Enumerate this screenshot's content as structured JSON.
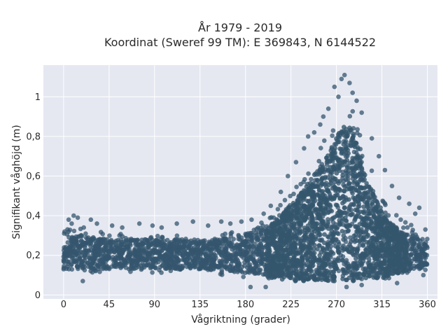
{
  "chart_data": {
    "type": "scatter",
    "title_lines": [
      "År 1979 - 2019",
      "Koordinat (Sweref 99 TM): E 369843, N 6144522"
    ],
    "xlabel": "Vågriktning (grader)",
    "ylabel": "Signifikant våghöjd (m)",
    "xlim": [
      -20,
      370
    ],
    "ylim": [
      -0.02,
      1.16
    ],
    "xticks": [
      0,
      45,
      90,
      135,
      180,
      225,
      270,
      315,
      360
    ],
    "xtick_labels": [
      "0",
      "45",
      "90",
      "135",
      "180",
      "225",
      "270",
      "315",
      "360"
    ],
    "yticks": [
      0,
      0.2,
      0.4,
      0.6,
      0.8,
      1
    ],
    "ytick_labels": [
      "0",
      "0,2",
      "0,4",
      "0,6",
      "0,8",
      "1"
    ],
    "grid": true,
    "marker_color": "#34566d",
    "background_color": "#e5e8f1",
    "envelope_x": [
      0,
      20,
      45,
      90,
      135,
      160,
      180,
      200,
      215,
      225,
      240,
      255,
      265,
      272,
      278,
      285,
      292,
      300,
      310,
      320,
      335,
      345,
      360
    ],
    "envelope_upper": [
      0.34,
      0.35,
      0.31,
      0.3,
      0.3,
      0.31,
      0.34,
      0.38,
      0.46,
      0.53,
      0.64,
      0.76,
      0.86,
      0.94,
      1.02,
      0.98,
      0.86,
      0.7,
      0.56,
      0.44,
      0.38,
      0.36,
      0.3
    ],
    "envelope_lower": [
      0.11,
      0.11,
      0.11,
      0.11,
      0.11,
      0.1,
      0.09,
      0.08,
      0.07,
      0.06,
      0.06,
      0.06,
      0.06,
      0.06,
      0.06,
      0.06,
      0.06,
      0.06,
      0.07,
      0.08,
      0.1,
      0.11,
      0.12
    ],
    "core_upper": [
      0.29,
      0.3,
      0.28,
      0.28,
      0.28,
      0.29,
      0.31,
      0.34,
      0.4,
      0.46,
      0.55,
      0.66,
      0.75,
      0.82,
      0.87,
      0.84,
      0.74,
      0.6,
      0.48,
      0.38,
      0.32,
      0.3,
      0.28
    ],
    "outliers": [
      {
        "x": 278,
        "y": 1.11
      },
      {
        "x": 275,
        "y": 1.09
      },
      {
        "x": 283,
        "y": 1.07
      },
      {
        "x": 268,
        "y": 1.05
      },
      {
        "x": 286,
        "y": 1.02
      },
      {
        "x": 272,
        "y": 1.0
      },
      {
        "x": 290,
        "y": 0.98
      },
      {
        "x": 262,
        "y": 0.94
      },
      {
        "x": 295,
        "y": 0.92
      },
      {
        "x": 257,
        "y": 0.9
      },
      {
        "x": 254,
        "y": 0.86
      },
      {
        "x": 248,
        "y": 0.82
      },
      {
        "x": 242,
        "y": 0.8
      },
      {
        "x": 305,
        "y": 0.79
      },
      {
        "x": 238,
        "y": 0.74
      },
      {
        "x": 312,
        "y": 0.7
      },
      {
        "x": 230,
        "y": 0.67
      },
      {
        "x": 318,
        "y": 0.63
      },
      {
        "x": 222,
        "y": 0.6
      },
      {
        "x": 325,
        "y": 0.55
      },
      {
        "x": 215,
        "y": 0.52
      },
      {
        "x": 332,
        "y": 0.49
      },
      {
        "x": 205,
        "y": 0.45
      },
      {
        "x": 342,
        "y": 0.46
      },
      {
        "x": 352,
        "y": 0.44
      },
      {
        "x": 348,
        "y": 0.41
      },
      {
        "x": 198,
        "y": 0.41
      },
      {
        "x": 186,
        "y": 0.38
      },
      {
        "x": 176,
        "y": 0.37
      },
      {
        "x": 5,
        "y": 0.38
      },
      {
        "x": 10,
        "y": 0.4
      },
      {
        "x": 14,
        "y": 0.39
      },
      {
        "x": 8,
        "y": 0.36
      },
      {
        "x": 20,
        "y": 0.34
      },
      {
        "x": 27,
        "y": 0.38
      },
      {
        "x": 33,
        "y": 0.36
      },
      {
        "x": 48,
        "y": 0.35
      },
      {
        "x": 58,
        "y": 0.34
      },
      {
        "x": 75,
        "y": 0.36
      },
      {
        "x": 88,
        "y": 0.35
      },
      {
        "x": 97,
        "y": 0.34
      },
      {
        "x": 112,
        "y": 0.36
      },
      {
        "x": 128,
        "y": 0.37
      },
      {
        "x": 143,
        "y": 0.35
      },
      {
        "x": 156,
        "y": 0.37
      },
      {
        "x": 165,
        "y": 0.36
      },
      {
        "x": 358,
        "y": 0.33
      },
      {
        "x": 1,
        "y": 0.32
      },
      {
        "x": 19,
        "y": 0.07
      },
      {
        "x": 185,
        "y": 0.04
      },
      {
        "x": 200,
        "y": 0.04
      },
      {
        "x": 280,
        "y": 0.04
      },
      {
        "x": 295,
        "y": 0.05
      },
      {
        "x": 330,
        "y": 0.06
      },
      {
        "x": 356,
        "y": 0.1
      }
    ]
  }
}
